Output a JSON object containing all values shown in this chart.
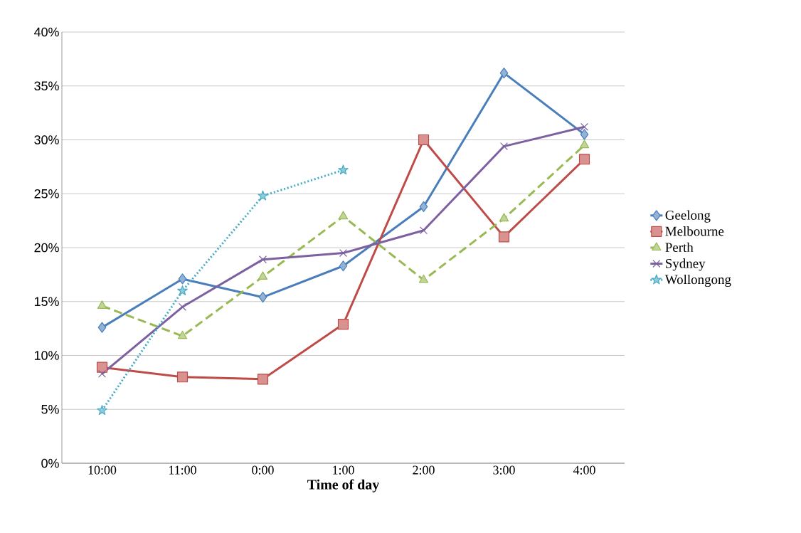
{
  "chart_data": {
    "type": "line",
    "xlabel": "Time of day",
    "categories": [
      "10:00",
      "11:00",
      "0:00",
      "1:00",
      "2:00",
      "3:00",
      "4:00"
    ],
    "ylim": [
      0,
      40
    ],
    "yticks": [
      {
        "value": 0,
        "label": "0%"
      },
      {
        "value": 5,
        "label": "5%"
      },
      {
        "value": 10,
        "label": "10%"
      },
      {
        "value": 15,
        "label": "15%"
      },
      {
        "value": 20,
        "label": "20%"
      },
      {
        "value": 25,
        "label": "25%"
      },
      {
        "value": 30,
        "label": "30%"
      },
      {
        "value": 35,
        "label": "35%"
      },
      {
        "value": 40,
        "label": "40%"
      }
    ],
    "grid": "y",
    "legend": "right",
    "series": [
      {
        "name": "Geelong",
        "color": "#4a7ebb",
        "marker": "diamond",
        "line_style": "solid",
        "values": [
          12.6,
          17.1,
          15.4,
          18.3,
          23.8,
          36.2,
          30.5
        ]
      },
      {
        "name": "Melbourne",
        "color": "#be4b48",
        "marker": "square",
        "line_style": "solid",
        "values": [
          8.9,
          8.0,
          7.8,
          12.9,
          30.0,
          21.0,
          28.2
        ]
      },
      {
        "name": "Perth",
        "color": "#98b954",
        "marker": "triangle",
        "line_style": "dashed",
        "values": [
          14.6,
          11.8,
          17.3,
          22.9,
          17.0,
          22.7,
          29.5
        ]
      },
      {
        "name": "Sydney",
        "color": "#7d60a0",
        "marker": "cross",
        "line_style": "solid",
        "values": [
          8.3,
          14.5,
          18.9,
          19.5,
          21.6,
          29.4,
          31.2
        ]
      },
      {
        "name": "Wollongong",
        "color": "#46aac5",
        "marker": "star",
        "line_style": "dotted",
        "values": [
          4.9,
          16.0,
          24.8,
          27.2,
          null,
          null,
          null
        ]
      }
    ]
  }
}
